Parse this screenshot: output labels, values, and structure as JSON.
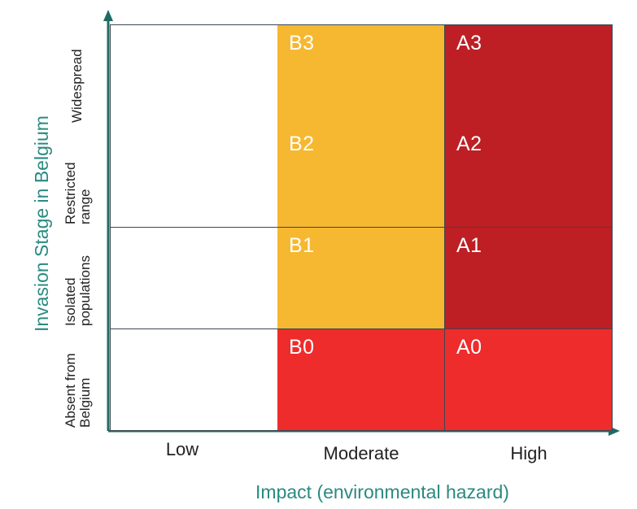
{
  "x_axis": {
    "label": "Impact (environmental hazard)",
    "categories": [
      "Low",
      "Moderate",
      "High"
    ]
  },
  "y_axis": {
    "label": "Invasion Stage in Belgium",
    "categories": [
      "Absent from\nBelgium",
      "Isolated\npopulations",
      "Restricted\nrange",
      "Widespread"
    ]
  },
  "grid": {
    "rows": [
      {
        "stage": "Widespread",
        "cells": [
          {
            "impact": "Low",
            "code": "",
            "color": "#ffffff"
          },
          {
            "impact": "Moderate",
            "code": "B3",
            "color": "#f6b830"
          },
          {
            "impact": "High",
            "code": "A3",
            "color": "#bd1f24"
          }
        ]
      },
      {
        "stage": "Restricted range",
        "cells": [
          {
            "impact": "Low",
            "code": "",
            "color": "#ffffff"
          },
          {
            "impact": "Moderate",
            "code": "B2",
            "color": "#f6b830"
          },
          {
            "impact": "High",
            "code": "A2",
            "color": "#bd1f24"
          }
        ]
      },
      {
        "stage": "Isolated populations",
        "cells": [
          {
            "impact": "Low",
            "code": "",
            "color": "#ffffff"
          },
          {
            "impact": "Moderate",
            "code": "B1",
            "color": "#f6b830"
          },
          {
            "impact": "High",
            "code": "A1",
            "color": "#bd1f24"
          }
        ]
      },
      {
        "stage": "Absent from Belgium",
        "cells": [
          {
            "impact": "Low",
            "code": "",
            "color": "#ffffff"
          },
          {
            "impact": "Moderate",
            "code": "B0",
            "color": "#ee2c2c"
          },
          {
            "impact": "High",
            "code": "A0",
            "color": "#ee2c2c"
          }
        ]
      }
    ]
  },
  "colors": {
    "axis": "#1f6b63",
    "label_teal": "#2a8a80"
  }
}
